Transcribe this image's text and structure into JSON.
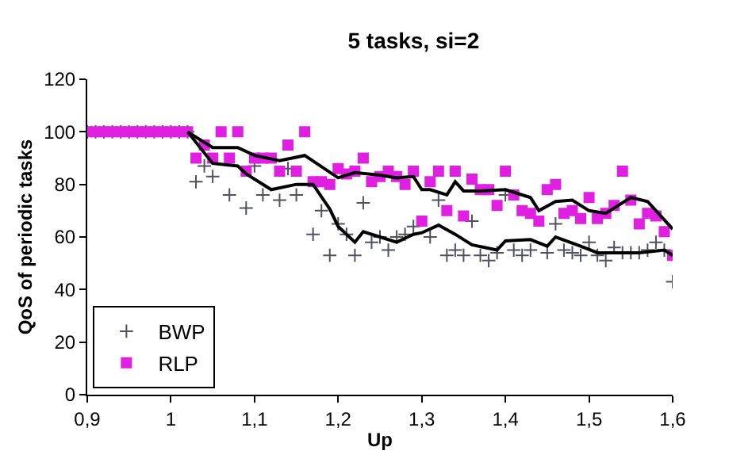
{
  "chart_data": {
    "type": "scatter",
    "title": "5 tasks, si=2",
    "xlabel": "Up",
    "ylabel": "QoS of periodic tasks",
    "xlim": [
      0.9,
      1.6
    ],
    "xticks": [
      {
        "value": 0.9,
        "label": "0,9"
      },
      {
        "value": 1.0,
        "label": "1"
      },
      {
        "value": 1.1,
        "label": "1,1"
      },
      {
        "value": 1.2,
        "label": "1,2"
      },
      {
        "value": 1.3,
        "label": "1,3"
      },
      {
        "value": 1.4,
        "label": "1,4"
      },
      {
        "value": 1.5,
        "label": "1,5"
      },
      {
        "value": 1.6,
        "label": "1,6"
      }
    ],
    "ylim": [
      0,
      120
    ],
    "yticks": [
      0,
      20,
      40,
      60,
      80,
      100,
      120
    ],
    "grid": false,
    "legend": "bottom left",
    "series": [
      {
        "name": "BWP",
        "marker": "cross",
        "color": "#505060",
        "x": [
          0.9,
          0.91,
          0.92,
          0.93,
          0.94,
          0.95,
          0.96,
          0.97,
          0.98,
          0.99,
          1.0,
          1.01,
          1.02,
          1.03,
          1.04,
          1.05,
          1.07,
          1.09,
          1.1,
          1.11,
          1.13,
          1.14,
          1.15,
          1.17,
          1.18,
          1.19,
          1.2,
          1.21,
          1.22,
          1.23,
          1.24,
          1.25,
          1.26,
          1.27,
          1.28,
          1.29,
          1.31,
          1.32,
          1.33,
          1.34,
          1.35,
          1.36,
          1.37,
          1.38,
          1.39,
          1.4,
          1.41,
          1.42,
          1.43,
          1.45,
          1.46,
          1.47,
          1.48,
          1.49,
          1.5,
          1.51,
          1.52,
          1.53,
          1.54,
          1.55,
          1.56,
          1.57,
          1.58,
          1.59,
          1.6
        ],
        "values": [
          100,
          100,
          100,
          100,
          100,
          100,
          100,
          100,
          100,
          100,
          100,
          100,
          100,
          81,
          87,
          83,
          76,
          71,
          87,
          76,
          74,
          86,
          76,
          61,
          70,
          53,
          65,
          61,
          53,
          73,
          58,
          60,
          55,
          60,
          61,
          64,
          60,
          74,
          53,
          55,
          53,
          66,
          53,
          51,
          54,
          76,
          55,
          53,
          55,
          54,
          65,
          55,
          54,
          53,
          58,
          53,
          51,
          56,
          54,
          54,
          54,
          55,
          58,
          55,
          43
        ]
      },
      {
        "name": "RLP",
        "marker": "square",
        "color": "#e020e0",
        "x": [
          0.9,
          0.91,
          0.92,
          0.93,
          0.94,
          0.95,
          0.96,
          0.97,
          0.98,
          0.99,
          1.0,
          1.01,
          1.02,
          1.03,
          1.04,
          1.05,
          1.06,
          1.07,
          1.08,
          1.09,
          1.1,
          1.11,
          1.12,
          1.13,
          1.14,
          1.15,
          1.16,
          1.17,
          1.18,
          1.19,
          1.2,
          1.21,
          1.22,
          1.23,
          1.24,
          1.25,
          1.26,
          1.27,
          1.28,
          1.29,
          1.3,
          1.31,
          1.32,
          1.33,
          1.34,
          1.35,
          1.36,
          1.37,
          1.38,
          1.39,
          1.4,
          1.41,
          1.42,
          1.43,
          1.44,
          1.45,
          1.46,
          1.47,
          1.48,
          1.49,
          1.5,
          1.51,
          1.52,
          1.53,
          1.54,
          1.55,
          1.56,
          1.57,
          1.58,
          1.59,
          1.6
        ],
        "values": [
          100,
          100,
          100,
          100,
          100,
          100,
          100,
          100,
          100,
          100,
          100,
          100,
          100,
          90,
          95,
          90,
          100,
          90,
          100,
          85,
          90,
          90,
          90,
          85,
          95,
          85,
          100,
          81,
          81,
          80,
          86,
          84,
          85,
          90,
          81,
          83,
          85,
          83,
          80,
          85,
          66,
          81,
          85,
          70,
          85,
          68,
          82,
          78,
          78,
          72,
          85,
          76,
          70,
          69,
          66,
          78,
          80,
          69,
          70,
          67,
          75,
          67,
          69,
          72,
          85,
          74,
          65,
          69,
          68,
          62,
          53
        ]
      },
      {
        "type": "line",
        "marker": "none",
        "color": "#000000",
        "x": [
          1.02,
          1.05,
          1.08,
          1.1,
          1.13,
          1.16,
          1.2,
          1.22,
          1.25,
          1.27,
          1.29,
          1.3,
          1.31,
          1.33,
          1.34,
          1.35,
          1.37,
          1.4,
          1.43,
          1.44,
          1.46,
          1.48,
          1.5,
          1.52,
          1.55,
          1.57,
          1.6
        ],
        "values": [
          100,
          94,
          94,
          91,
          89,
          91,
          82.5,
          84.5,
          83.5,
          82.5,
          83,
          78,
          78,
          76,
          81,
          77.5,
          77.5,
          78,
          75,
          70,
          73.5,
          74,
          70,
          69,
          75,
          73.5,
          63
        ]
      },
      {
        "type": "line",
        "marker": "none",
        "color": "#000000",
        "x": [
          1.02,
          1.05,
          1.08,
          1.09,
          1.12,
          1.15,
          1.17,
          1.19,
          1.2,
          1.22,
          1.23,
          1.25,
          1.27,
          1.29,
          1.3,
          1.32,
          1.34,
          1.36,
          1.39,
          1.4,
          1.43,
          1.45,
          1.46,
          1.49,
          1.51,
          1.53,
          1.56,
          1.59,
          1.6
        ],
        "values": [
          100,
          88,
          87,
          84,
          78,
          80,
          80,
          70.6,
          64,
          58,
          62,
          60,
          58,
          61,
          61.6,
          64.5,
          61,
          57,
          55,
          58.5,
          59,
          56.5,
          60,
          56.5,
          54,
          54,
          54,
          55,
          53
        ]
      }
    ]
  }
}
